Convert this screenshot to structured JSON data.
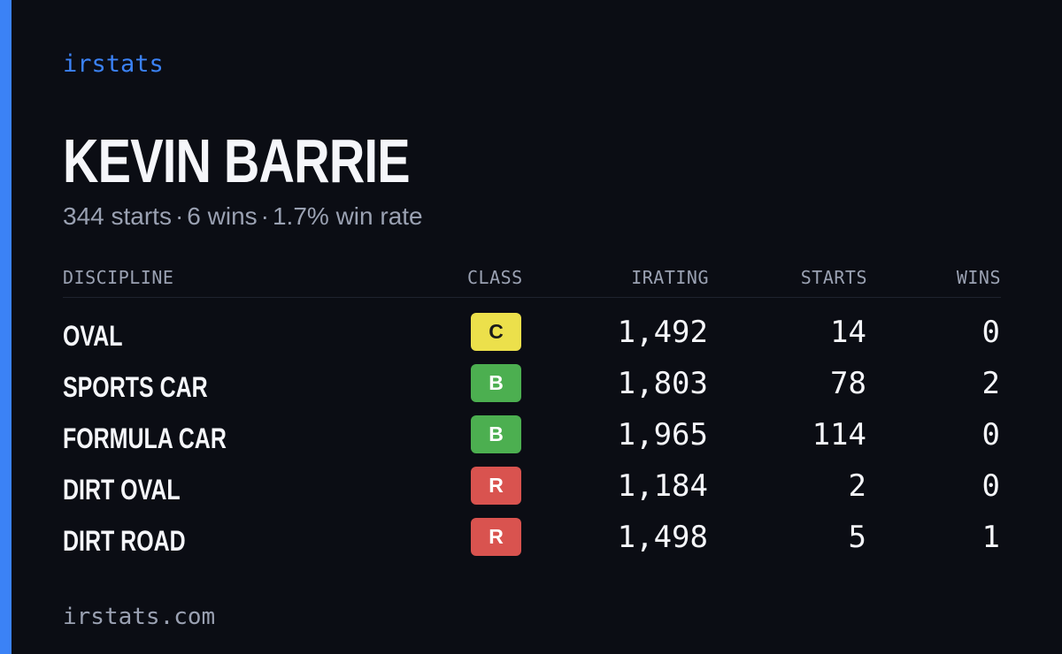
{
  "brand": "irstats",
  "driver": {
    "name": "KEVIN BARRIE",
    "starts": "344 starts",
    "wins": "6 wins",
    "win_rate": "1.7% win rate",
    "separator": "·"
  },
  "table": {
    "headers": {
      "discipline": "DISCIPLINE",
      "class": "CLASS",
      "irating": "IRATING",
      "starts": "STARTS",
      "wins": "WINS"
    },
    "rows": [
      {
        "discipline": "OVAL",
        "class": "C",
        "irating": "1,492",
        "starts": "14",
        "wins": "0"
      },
      {
        "discipline": "SPORTS CAR",
        "class": "B",
        "irating": "1,803",
        "starts": "78",
        "wins": "2"
      },
      {
        "discipline": "FORMULA CAR",
        "class": "B",
        "irating": "1,965",
        "starts": "114",
        "wins": "0"
      },
      {
        "discipline": "DIRT OVAL",
        "class": "R",
        "irating": "1,184",
        "starts": "2",
        "wins": "0"
      },
      {
        "discipline": "DIRT ROAD",
        "class": "R",
        "irating": "1,498",
        "starts": "5",
        "wins": "1"
      }
    ]
  },
  "class_colors": {
    "C": {
      "bg": "#ece04b",
      "fg": "#1b1b1b"
    },
    "B": {
      "bg": "#4caf50",
      "fg": "#ffffff"
    },
    "R": {
      "bg": "#d9534f",
      "fg": "#ffffff"
    }
  },
  "colors": {
    "accent": "#3b82f6",
    "background": "#0b0d14"
  },
  "footer": "irstats.com"
}
